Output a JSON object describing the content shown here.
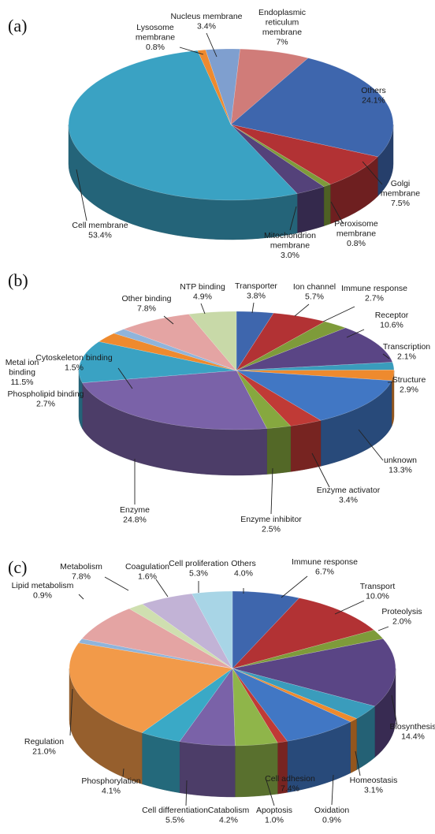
{
  "chart_data": [
    {
      "type": "pie",
      "panel_label": "(a)",
      "categories": [
        "Nucleus membrane",
        "Endoplasmic reticulum membrane",
        "Others",
        "Golgi membrane",
        "Peroxisome membrane",
        "Mitochondrion membrane",
        "Cell membrane",
        "Lysosome membrane"
      ],
      "values": [
        3.4,
        7,
        24.1,
        7.5,
        0.8,
        3.0,
        53.4,
        0.8
      ],
      "value_labels": [
        "3.4%",
        "7%",
        "24.1%",
        "7.5%",
        "0.8%",
        "3.0%",
        "53.4%",
        "0.8%"
      ],
      "colors": [
        "#7f9fcf",
        "#d07c79",
        "#3e66ad",
        "#b23234",
        "#7e9b3a",
        "#54427a",
        "#3aa2c3",
        "#ee8a2e"
      ],
      "labels": [
        {
          "lines": [
            "Nucleus membrane",
            "3.4%"
          ]
        },
        {
          "lines": [
            "Endoplasmic",
            "reticulum",
            "membrane",
            "7%"
          ]
        },
        {
          "lines": [
            "Others",
            "24.1%"
          ]
        },
        {
          "lines": [
            "Golgi",
            "membrane",
            "7.5%"
          ]
        },
        {
          "lines": [
            "Peroxisome",
            "membrane",
            "0.8%"
          ]
        },
        {
          "lines": [
            "Mitochondrion",
            "membrane",
            "3.0%"
          ]
        },
        {
          "lines": [
            "Cell membrane",
            "53.4%"
          ]
        },
        {
          "lines": [
            "Lysosome",
            "membrane",
            "0.8%"
          ]
        }
      ]
    },
    {
      "type": "pie",
      "panel_label": "(b)",
      "categories": [
        "Transporter",
        "Ion channel",
        "Immune response",
        "Receptor",
        "Transcription",
        "Structure",
        "unknown",
        "Enzyme activator",
        "Enzyme inhibitor",
        "Enzyme",
        "Metal ion binding",
        "Phospholipid binding",
        "Cytoskeleton binding",
        "Other binding",
        "NTP binding"
      ],
      "values": [
        3.8,
        5.7,
        2.7,
        10.6,
        2.1,
        2.9,
        13.3,
        3.4,
        2.5,
        24.8,
        11.5,
        2.7,
        1.5,
        7.8,
        4.9
      ],
      "value_labels": [
        "3.8%",
        "5.7%",
        "2.7%",
        "10.6%",
        "2.1%",
        "2.9%",
        "13.3%",
        "3.4%",
        "2.5%",
        "24.8%",
        "11.5%",
        "2.7%",
        "1.5%",
        "7.8%",
        "4.9%"
      ],
      "colors": [
        "#3e66ad",
        "#b23234",
        "#7e9b3a",
        "#5a4585",
        "#3a9cbc",
        "#ee8a2e",
        "#4177c4",
        "#c03a36",
        "#86a83f",
        "#7a62a8",
        "#3aa2c3",
        "#ee8a2e",
        "#8fb4db",
        "#e4a4a3",
        "#c8d9a8"
      ],
      "labels": [
        {
          "lines": [
            "Transporter",
            "3.8%"
          ]
        },
        {
          "lines": [
            "Ion channel",
            "5.7%"
          ]
        },
        {
          "lines": [
            "Immune response",
            "2.7%"
          ]
        },
        {
          "lines": [
            "Receptor",
            "10.6%"
          ]
        },
        {
          "lines": [
            "Transcription",
            "2.1%"
          ]
        },
        {
          "lines": [
            "Structure",
            "2.9%"
          ]
        },
        {
          "lines": [
            "unknown",
            "13.3%"
          ]
        },
        {
          "lines": [
            "Enzyme activator",
            "3.4%"
          ]
        },
        {
          "lines": [
            "Enzyme inhibitor",
            "2.5%"
          ]
        },
        {
          "lines": [
            "Enzyme",
            "24.8%"
          ]
        },
        {
          "lines": [
            "Metal ion",
            "binding",
            "11.5%"
          ]
        },
        {
          "lines": [
            "Phospholipid binding",
            "2.7%"
          ]
        },
        {
          "lines": [
            "Cytoskeleton binding",
            "1.5%"
          ]
        },
        {
          "lines": [
            "Other binding",
            "7.8%"
          ]
        },
        {
          "lines": [
            "NTP binding",
            "4.9%"
          ]
        }
      ]
    },
    {
      "type": "pie",
      "panel_label": "(c)",
      "categories": [
        "Immune response",
        "Transport",
        "Proteolysis",
        "Biosynthesis",
        "Homeostasis",
        "Oxidation",
        "Cell adhesion",
        "Apoptosis",
        "Catabolism",
        "Cell differentiation",
        "Phosphorylation",
        "Regulation",
        "Lipid metabolism",
        "Metabolism",
        "Coagulation",
        "Cell proliferation",
        "Others"
      ],
      "values": [
        6.7,
        10.0,
        2.0,
        14.4,
        3.1,
        0.9,
        7.4,
        1.0,
        4.2,
        5.5,
        4.1,
        21.0,
        0.9,
        7.8,
        1.6,
        5.3,
        4.0
      ],
      "value_labels": [
        "6.7%",
        "10.0%",
        "2.0%",
        "14.4%",
        "3.1%",
        "0.9%",
        "7.4%",
        "1.0%",
        "4.2%",
        "5.5%",
        "4.1%",
        "21.0%",
        "0.9%",
        "7.8%",
        "1.6%",
        "5.3%",
        "4.0%"
      ],
      "colors": [
        "#3e66ad",
        "#b23234",
        "#7e9b3a",
        "#5a4585",
        "#3a9cbc",
        "#ee8a2e",
        "#4177c4",
        "#c03a36",
        "#8fb54a",
        "#7a62a8",
        "#3aa9c6",
        "#f29a49",
        "#8fb4db",
        "#e4a4a3",
        "#cfdfb0",
        "#c2b3d6",
        "#a8d5e6"
      ],
      "labels": [
        {
          "lines": [
            "Immune response",
            "6.7%"
          ]
        },
        {
          "lines": [
            "Transport",
            "10.0%"
          ]
        },
        {
          "lines": [
            "Proteolysis",
            "2.0%"
          ]
        },
        {
          "lines": [
            "Biosynthesis",
            "14.4%"
          ]
        },
        {
          "lines": [
            "Homeostasis",
            "3.1%"
          ]
        },
        {
          "lines": [
            "Oxidation",
            "0.9%"
          ]
        },
        {
          "lines": [
            "Cell adhesion",
            "7.4%"
          ]
        },
        {
          "lines": [
            "Apoptosis",
            "1.0%"
          ]
        },
        {
          "lines": [
            "Catabolism",
            "4.2%"
          ]
        },
        {
          "lines": [
            "Cell differentiation",
            "5.5%"
          ]
        },
        {
          "lines": [
            "Phosphorylation",
            "4.1%"
          ]
        },
        {
          "lines": [
            "Regulation",
            "21.0%"
          ]
        },
        {
          "lines": [
            "Lipid metabolism",
            "0.9%"
          ]
        },
        {
          "lines": [
            "Metabolism",
            "7.8%"
          ]
        },
        {
          "lines": [
            "Coagulation",
            "1.6%"
          ]
        },
        {
          "lines": [
            "Cell proliferation",
            "5.3%"
          ]
        },
        {
          "lines": [
            "Others",
            "4.0%"
          ]
        }
      ]
    }
  ]
}
